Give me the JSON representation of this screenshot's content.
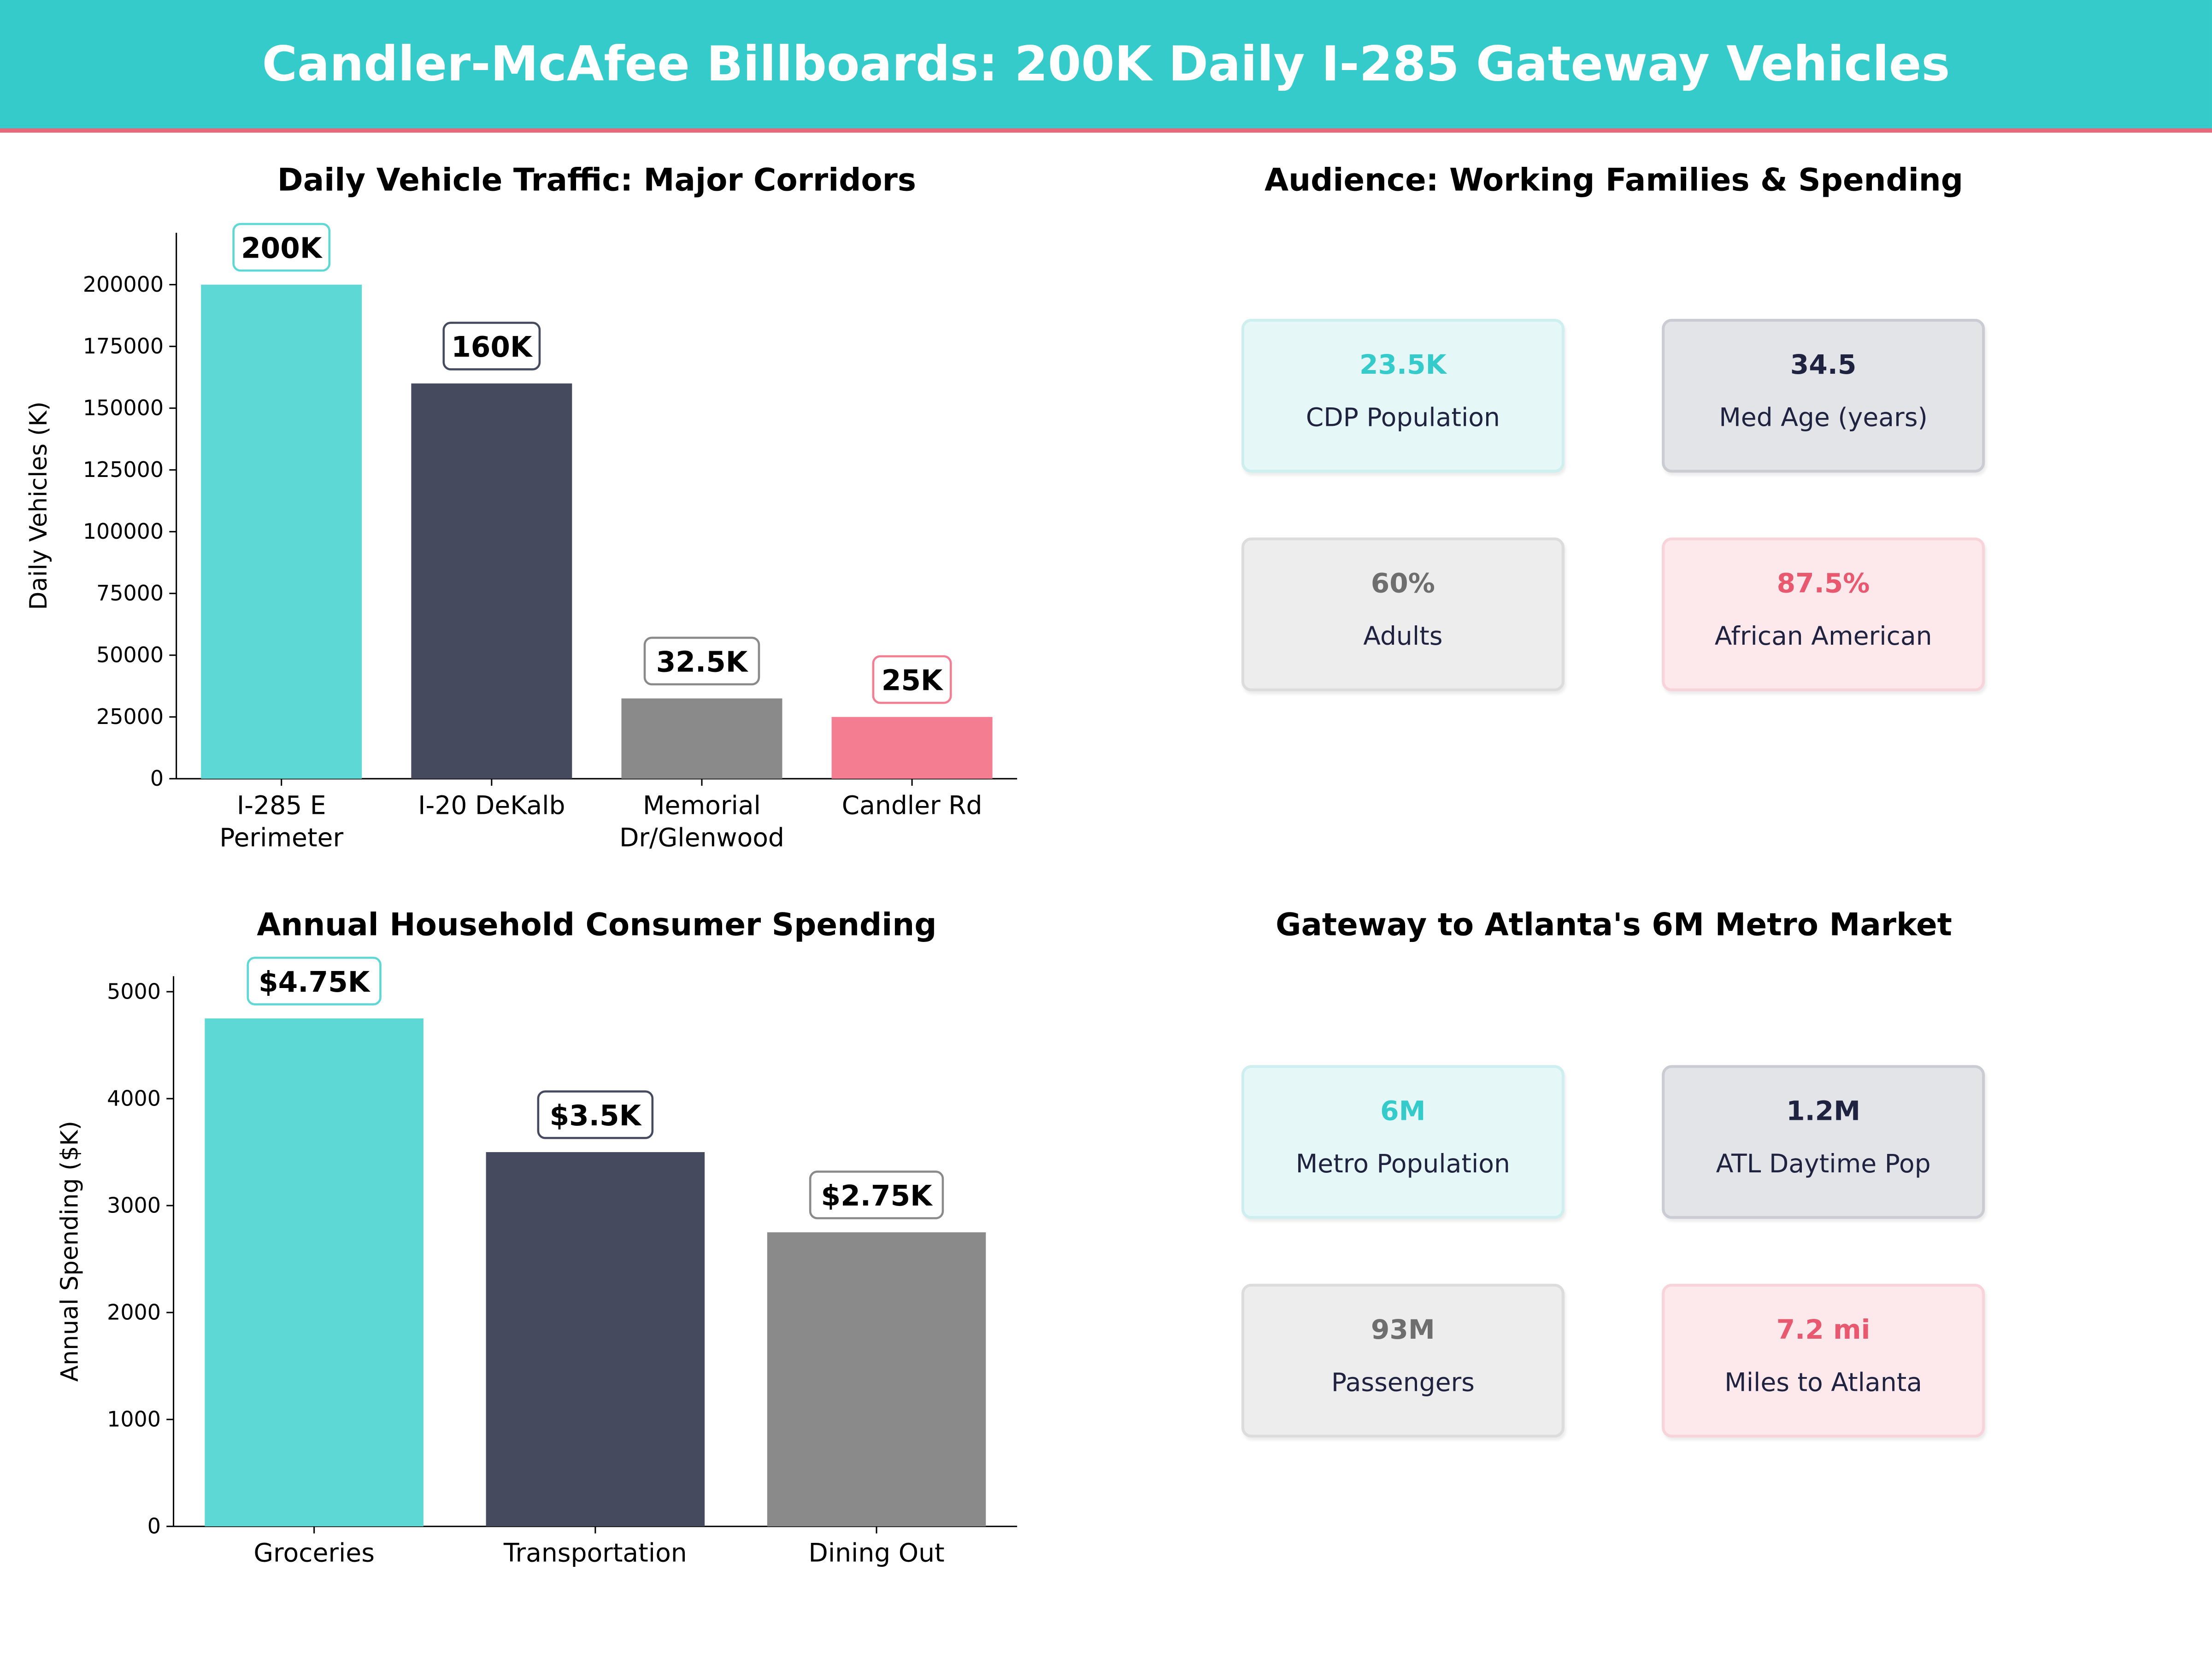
{
  "title": "Candler-McAfee Billboards: 200K Daily I-285 Gateway Vehicles",
  "colors": {
    "header": "#35CBCB",
    "accent_line": "#E8667A",
    "teal": "#5DD8D4",
    "navy": "#454A5F",
    "gray": "#8A8A8A",
    "pink": "#F57D92"
  },
  "chart_data": [
    {
      "type": "bar",
      "title": "Daily Vehicle Traffic: Major Corridors",
      "xlabel": "",
      "ylabel": "Daily Vehicles (K)",
      "categories": [
        "I-285 E\nPerimeter",
        "I-20 DeKalb",
        "Memorial\nDr/Glenwood",
        "Candler Rd"
      ],
      "values": [
        200000,
        160000,
        32500,
        25000
      ],
      "data_labels": [
        "200K",
        "160K",
        "32.5K",
        "25K"
      ],
      "bar_colors": [
        "#5DD8D4",
        "#454A5F",
        "#8A8A8A",
        "#F57D92"
      ],
      "yticks": [
        0,
        25000,
        50000,
        75000,
        100000,
        125000,
        150000,
        175000,
        200000
      ],
      "ylim": [
        0,
        221000
      ],
      "grid": false
    },
    {
      "type": "bar",
      "title": "Annual Household Consumer Spending",
      "xlabel": "",
      "ylabel": "Annual Spending ($K)",
      "categories": [
        "Groceries",
        "Transportation",
        "Dining Out"
      ],
      "values": [
        4750,
        3500,
        2750
      ],
      "data_labels": [
        "$4.75K",
        "$3.5K",
        "$2.75K"
      ],
      "bar_colors": [
        "#5DD8D4",
        "#454A5F",
        "#8A8A8A"
      ],
      "yticks": [
        0,
        1000,
        2000,
        3000,
        4000,
        5000
      ],
      "ylim": [
        0,
        5145
      ],
      "grid": false
    }
  ],
  "audience": {
    "title": "Audience: Working Families & Spending",
    "cards": [
      {
        "value": "23.5K",
        "label": "CDP Population"
      },
      {
        "value": "34.5",
        "label": "Med Age (years)"
      },
      {
        "value": "60%",
        "label": "Adults"
      },
      {
        "value": "87.5%",
        "label": "African American"
      }
    ]
  },
  "gateway": {
    "title": "Gateway to Atlanta's 6M Metro Market",
    "cards": [
      {
        "value": "6M",
        "label": "Metro Population"
      },
      {
        "value": "1.2M",
        "label": "ATL Daytime Pop"
      },
      {
        "value": "93M",
        "label": "Passengers"
      },
      {
        "value": "7.2 mi",
        "label": "Miles to Atlanta"
      }
    ]
  }
}
